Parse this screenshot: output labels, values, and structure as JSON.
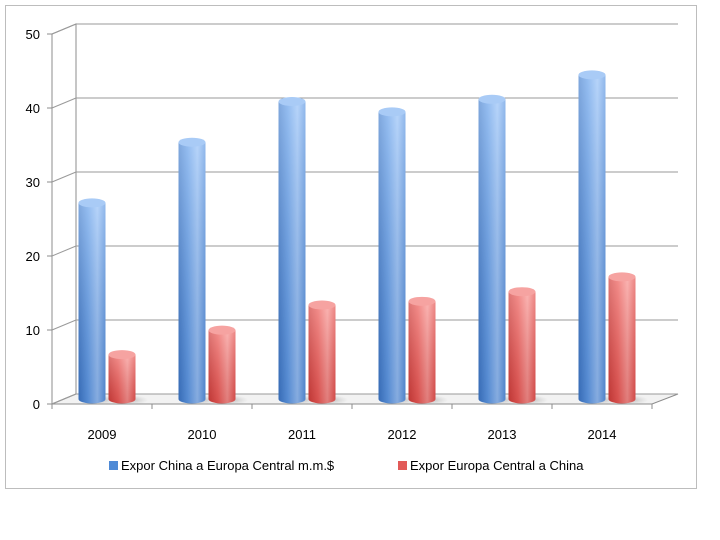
{
  "chart_data": {
    "type": "bar",
    "categories": [
      "2009",
      "2010",
      "2011",
      "2012",
      "2013",
      "2014"
    ],
    "series": [
      {
        "name": "Expor China a Europa Central m.m.$",
        "values": [
          26.5,
          34.7,
          40.2,
          38.8,
          40.5,
          43.8
        ],
        "color": "#4a86d4"
      },
      {
        "name": "Expor Europa Central a China",
        "values": [
          6.0,
          9.3,
          12.7,
          13.2,
          14.5,
          16.5
        ],
        "color": "#e2504e"
      }
    ],
    "yticks": [
      "0",
      "10",
      "20",
      "30",
      "40",
      "50"
    ],
    "ylim": [
      0,
      50
    ],
    "title": "",
    "xlabel": "",
    "ylabel": "",
    "grid": true,
    "legend_position": "bottom",
    "style": "3d-cylinder"
  }
}
